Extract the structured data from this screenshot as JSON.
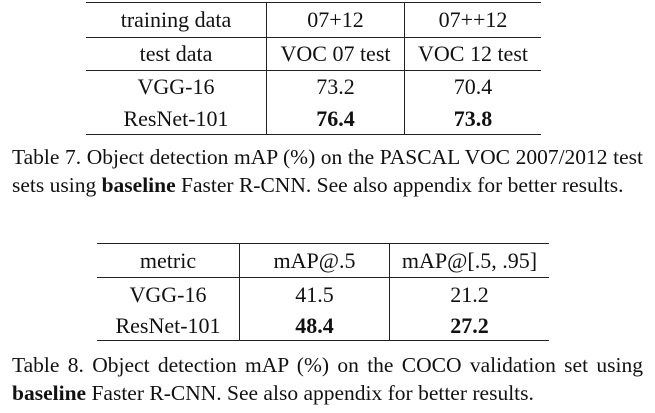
{
  "table7": {
    "header_row1": [
      "training data",
      "07+12",
      "07++12"
    ],
    "header_row2": [
      "test data",
      "VOC 07 test",
      "VOC 12 test"
    ],
    "rows": [
      {
        "model": "VGG-16",
        "values": [
          "73.2",
          "70.4"
        ]
      },
      {
        "model": "ResNet-101",
        "values": [
          "76.4",
          "73.8"
        ]
      }
    ],
    "caption": {
      "prefix": "Table 7. Object detection mAP (%) on the PASCAL VOC 2007/2012 test sets using ",
      "bold": "baseline",
      "suffix": " Faster R-CNN. See also appendix for better results."
    }
  },
  "table8": {
    "header": [
      "metric",
      "mAP@.5",
      "mAP@[.5, .95]"
    ],
    "rows": [
      {
        "model": "VGG-16",
        "values": [
          "41.5",
          "21.2"
        ]
      },
      {
        "model": "ResNet-101",
        "values": [
          "48.4",
          "27.2"
        ]
      }
    ],
    "caption": {
      "prefix": "Table 8. Object detection mAP (%) on the COCO validation set using ",
      "bold": "baseline",
      "suffix": " Faster R-CNN. See also appendix for better results."
    }
  }
}
